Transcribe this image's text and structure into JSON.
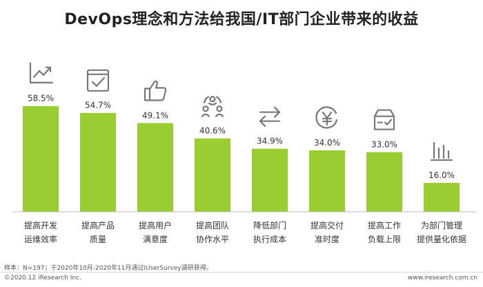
{
  "title": "DevOps理念和方法给我国/IT部门企业带来的收益",
  "chart_data": {
    "type": "bar",
    "categories": [
      [
        "提高开发",
        "运维效率"
      ],
      [
        "提高产品",
        "质量"
      ],
      [
        "提高用户",
        "满意度"
      ],
      [
        "提高团队",
        "协作水平"
      ],
      [
        "降低部门",
        "执行成本"
      ],
      [
        "提高交付",
        "准时度"
      ],
      [
        "提高工作",
        "负载上限"
      ],
      [
        "为部门管理",
        "提供量化依据"
      ]
    ],
    "values": [
      58.5,
      54.7,
      49.1,
      40.6,
      34.9,
      34.0,
      33.0,
      16.0
    ],
    "value_labels": [
      "58.5%",
      "54.7%",
      "49.1%",
      "40.6%",
      "34.9%",
      "34.0%",
      "33.0%",
      "16.0%"
    ],
    "icons": [
      "trend-chart-icon",
      "checkbox-icon",
      "thumbs-up-icon",
      "team-cycle-icon",
      "exchange-arrows-icon",
      "yen-coin-icon",
      "inbox-check-icon",
      "bar-chart-icon"
    ],
    "ylim": [
      0,
      65
    ],
    "bar_color": "#9ACD32",
    "grid": false
  },
  "note": "样本：N=197；于2020年10月-2020年11月通过iUserSurvey调研获得。",
  "copyright": "©2020.12 iResearch Inc.",
  "website": "www.iresearch.com.cn"
}
